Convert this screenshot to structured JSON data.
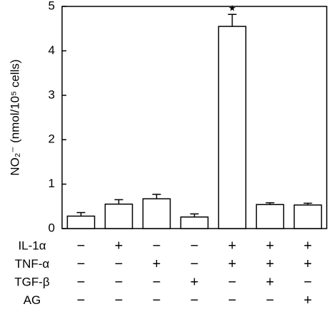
{
  "chart_data": {
    "type": "bar",
    "y_label": "NO₂⁻ (nmol/10⁵ cells)",
    "categories": [
      null,
      null,
      null,
      null,
      null,
      null,
      null
    ],
    "values": [
      0.28,
      0.55,
      0.67,
      0.26,
      4.55,
      0.54,
      0.53
    ],
    "errors": [
      0.08,
      0.1,
      0.1,
      0.07,
      0.27,
      0.04,
      0.04
    ],
    "value_annotations": [
      null,
      null,
      null,
      null,
      "★",
      null,
      null
    ],
    "color": "#ffffff",
    "ylim": [
      0,
      5
    ],
    "yticks": [
      0,
      1,
      2,
      3,
      4,
      5
    ],
    "treatments": [
      {
        "label": "IL-1α",
        "signs": [
          "−",
          "+",
          "−",
          "−",
          "+",
          "+",
          "+"
        ]
      },
      {
        "label": "TNF-α",
        "signs": [
          "−",
          "−",
          "+",
          "−",
          "+",
          "+",
          "+"
        ]
      },
      {
        "label": "TGF-β",
        "signs": [
          "−",
          "−",
          "−",
          "+",
          "−",
          "+",
          "−"
        ]
      },
      {
        "label": "AG",
        "signs": [
          "−",
          "−",
          "−",
          "−",
          "−",
          "−",
          "+"
        ]
      }
    ]
  }
}
